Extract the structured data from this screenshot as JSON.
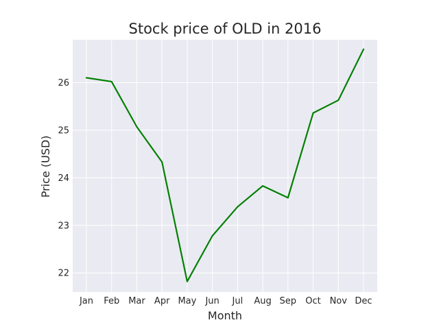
{
  "chart_data": {
    "type": "line",
    "title": "Stock price of OLD in 2016",
    "xlabel": "Month",
    "ylabel": "Price (USD)",
    "categories": [
      "Jan",
      "Feb",
      "Mar",
      "Apr",
      "May",
      "Jun",
      "Jul",
      "Aug",
      "Sep",
      "Oct",
      "Nov",
      "Dec"
    ],
    "series": [
      {
        "values": [
          26.1,
          26.02,
          25.07,
          24.33,
          21.82,
          22.78,
          23.39,
          23.83,
          23.58,
          25.36,
          25.63,
          26.7
        ]
      }
    ],
    "yticks": [
      22,
      23,
      24,
      25,
      26
    ],
    "ylim": [
      21.6,
      26.9
    ],
    "grid": true,
    "line_color": "#008000",
    "plot_background": "#eaeaf2",
    "grid_color": "#ffffff"
  }
}
